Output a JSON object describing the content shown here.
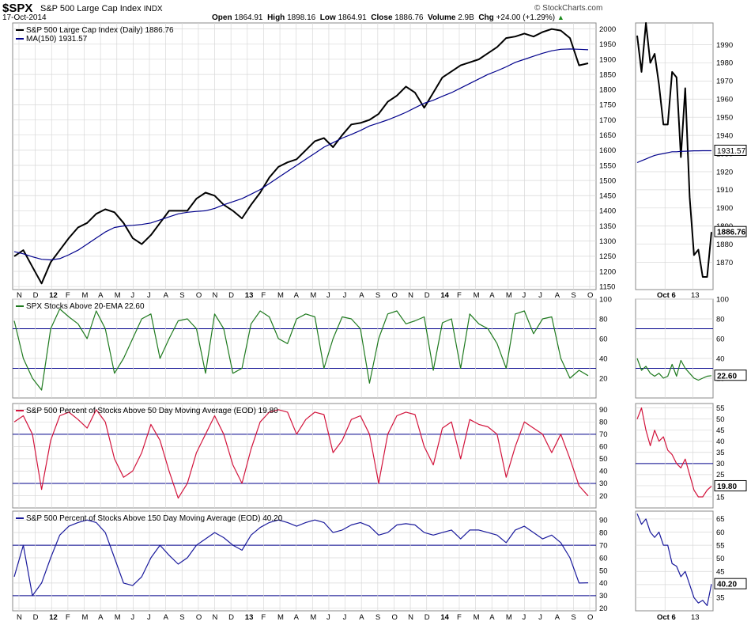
{
  "header": {
    "symbol": "$SPX",
    "name": "S&P 500 Large Cap Index",
    "exchange": "INDX",
    "date": "17-Oct-2014",
    "open_label": "Open",
    "open": "1864.91",
    "high_label": "High",
    "high": "1898.16",
    "low_label": "Low",
    "low": "1864.91",
    "close_label": "Close",
    "close": "1886.76",
    "volume_label": "Volume",
    "volume": "2.9B",
    "chg_label": "Chg",
    "chg": "+24.00 (+1.29%)",
    "brand": "© StockCharts.com"
  },
  "colors": {
    "price": "#000000",
    "ma": "#00008b",
    "ema_pct": "#1f7a1f",
    "pct50": "#d2143c",
    "pct150": "#1a1a9c",
    "grid": "#d8d8d8",
    "ref_line": "#00008b"
  },
  "chart_data": [
    {
      "type": "line",
      "title": "S&P 500 Large Cap Index (Daily) 1886.76",
      "x_ticks": [
        "N",
        "D",
        "12",
        "F",
        "M",
        "A",
        "M",
        "J",
        "J",
        "A",
        "S",
        "O",
        "N",
        "D",
        "13",
        "F",
        "M",
        "A",
        "M",
        "J",
        "J",
        "A",
        "S",
        "O",
        "N",
        "D",
        "14",
        "F",
        "M",
        "A",
        "M",
        "J",
        "J",
        "A",
        "S",
        "O"
      ],
      "ylim": [
        1140,
        2020
      ],
      "y_ticks": [
        1150,
        1200,
        1250,
        1300,
        1350,
        1400,
        1450,
        1500,
        1550,
        1600,
        1650,
        1700,
        1750,
        1800,
        1850,
        1900,
        1950,
        2000
      ],
      "series": [
        {
          "name": "S&P 500 Large Cap Index (Daily) 1886.76",
          "values": [
            1250,
            1270,
            1215,
            1160,
            1230,
            1270,
            1310,
            1345,
            1360,
            1390,
            1405,
            1395,
            1360,
            1310,
            1290,
            1320,
            1360,
            1400,
            1400,
            1400,
            1440,
            1460,
            1450,
            1420,
            1400,
            1375,
            1420,
            1460,
            1510,
            1545,
            1560,
            1570,
            1600,
            1630,
            1640,
            1610,
            1650,
            1685,
            1690,
            1700,
            1720,
            1760,
            1780,
            1810,
            1790,
            1740,
            1790,
            1840,
            1860,
            1880,
            1890,
            1900,
            1920,
            1940,
            1970,
            1975,
            1985,
            1975,
            1990,
            2000,
            1995,
            1970,
            1880,
            1886.76
          ]
        },
        {
          "name": "MA(150) 1931.57",
          "values": [
            1265,
            1258,
            1248,
            1240,
            1238,
            1242,
            1255,
            1270,
            1290,
            1310,
            1330,
            1345,
            1350,
            1352,
            1355,
            1360,
            1370,
            1380,
            1390,
            1395,
            1398,
            1400,
            1408,
            1420,
            1430,
            1440,
            1455,
            1470,
            1490,
            1510,
            1530,
            1550,
            1570,
            1590,
            1610,
            1625,
            1640,
            1652,
            1665,
            1680,
            1690,
            1700,
            1712,
            1725,
            1740,
            1755,
            1765,
            1778,
            1790,
            1805,
            1820,
            1835,
            1850,
            1862,
            1875,
            1890,
            1900,
            1910,
            1920,
            1928,
            1933,
            1934,
            1933,
            1931.57
          ]
        }
      ]
    },
    {
      "type": "line",
      "title": "SPX Stocks Above 20-EMA 22.60",
      "ylim": [
        0,
        100
      ],
      "y_ticks": [
        20,
        40,
        60,
        80,
        100
      ],
      "reference_lines": [
        30,
        70
      ],
      "series": [
        {
          "name": "SPX Stocks Above 20-EMA 22.60",
          "values": [
            78,
            40,
            20,
            8,
            70,
            90,
            82,
            75,
            60,
            88,
            70,
            25,
            40,
            60,
            80,
            85,
            40,
            60,
            78,
            80,
            70,
            25,
            85,
            70,
            25,
            30,
            75,
            88,
            82,
            60,
            55,
            80,
            85,
            82,
            30,
            60,
            82,
            80,
            70,
            15,
            60,
            85,
            88,
            75,
            78,
            82,
            28,
            76,
            80,
            30,
            85,
            75,
            70,
            55,
            30,
            85,
            88,
            65,
            80,
            82,
            40,
            20,
            28,
            22.6
          ]
        }
      ]
    },
    {
      "type": "line",
      "title": "S&P 500 Percent of Stocks Above 50 Day Moving Average (EOD) 19.80",
      "ylim": [
        10,
        95
      ],
      "y_ticks": [
        20,
        30,
        40,
        50,
        60,
        70,
        80,
        90
      ],
      "reference_lines": [
        30,
        70
      ],
      "series": [
        {
          "name": "S&P 500 Percent of Stocks Above 50 Day Moving Average (EOD) 19.80",
          "values": [
            80,
            85,
            70,
            25,
            65,
            85,
            88,
            82,
            75,
            90,
            80,
            50,
            35,
            40,
            55,
            78,
            65,
            40,
            18,
            30,
            55,
            70,
            85,
            70,
            45,
            30,
            58,
            80,
            88,
            90,
            88,
            70,
            82,
            88,
            86,
            55,
            65,
            82,
            85,
            70,
            30,
            70,
            85,
            88,
            86,
            60,
            45,
            75,
            80,
            50,
            82,
            78,
            76,
            70,
            35,
            60,
            80,
            75,
            70,
            55,
            70,
            50,
            28,
            19.8
          ]
        }
      ]
    },
    {
      "type": "line",
      "title": "S&P 500 Percent of Stocks Above 150 Day Moving Average (EOD) 40.20",
      "ylim": [
        18,
        97
      ],
      "y_ticks": [
        20,
        30,
        40,
        50,
        60,
        70,
        80,
        90
      ],
      "reference_lines": [
        30,
        70
      ],
      "series": [
        {
          "name": "S&P 500 Percent of Stocks Above 150 Day Moving Average (EOD) 40.20",
          "values": [
            45,
            70,
            30,
            40,
            60,
            78,
            85,
            88,
            90,
            88,
            80,
            60,
            40,
            38,
            45,
            60,
            70,
            62,
            55,
            60,
            70,
            75,
            80,
            76,
            70,
            66,
            78,
            84,
            88,
            90,
            88,
            85,
            88,
            90,
            88,
            80,
            82,
            86,
            88,
            85,
            78,
            80,
            86,
            87,
            86,
            80,
            78,
            80,
            82,
            75,
            82,
            82,
            80,
            78,
            72,
            82,
            85,
            80,
            75,
            78,
            72,
            60,
            40,
            40.2
          ]
        }
      ]
    },
    {
      "type": "line",
      "title": "",
      "x_ticks": [
        "Oct 6",
        "13"
      ],
      "ylim": [
        1855,
        2002
      ],
      "y_ticks": [
        1870,
        1880,
        1890,
        1900,
        1910,
        1920,
        1930,
        1940,
        1950,
        1960,
        1970,
        1980,
        1990
      ],
      "series": [
        {
          "name": "S&P 500 Large Cap Index (Daily) 1886.76",
          "values": [
            1995,
            1975,
            2002,
            1980,
            1985,
            1968,
            1946,
            1946,
            1975,
            1972,
            1928,
            1966,
            1906,
            1874,
            1877,
            1862,
            1862,
            1886.76
          ]
        },
        {
          "name": "MA(150) 1931.57",
          "values": [
            1925,
            1926,
            1927,
            1928,
            1929,
            1929.5,
            1930,
            1930.5,
            1931,
            1931,
            1931.2,
            1931.3,
            1931.4,
            1931.5,
            1931.5,
            1931.55,
            1931.56,
            1931.57
          ]
        }
      ]
    },
    {
      "type": "line",
      "title": "",
      "ylim": [
        0,
        100
      ],
      "y_ticks": [
        20,
        40,
        60,
        80,
        100
      ],
      "reference_lines": [
        30,
        70
      ],
      "series": [
        {
          "name": "SPX Stocks Above 20-EMA 22.60",
          "values": [
            40,
            28,
            32,
            25,
            22,
            25,
            20,
            22,
            34,
            22,
            38,
            30,
            25,
            20,
            18,
            20,
            22,
            22.6
          ]
        }
      ]
    },
    {
      "type": "line",
      "title": "",
      "ylim": [
        10,
        57
      ],
      "y_ticks": [
        15,
        20,
        25,
        30,
        35,
        40,
        45,
        50,
        55
      ],
      "reference_lines": [
        30
      ],
      "series": [
        {
          "name": "S&P 500 Percent of Stocks Above 50 Day Moving Average (EOD) 19.80",
          "values": [
            50,
            55,
            45,
            38,
            45,
            40,
            42,
            36,
            34,
            30,
            28,
            32,
            25,
            18,
            15,
            15,
            18,
            19.8
          ]
        }
      ]
    },
    {
      "type": "line",
      "title": "",
      "ylim": [
        30,
        68
      ],
      "y_ticks": [
        35,
        40,
        45,
        50,
        55,
        60,
        65
      ],
      "series": [
        {
          "name": "S&P 500 Percent of Stocks Above 150 Day Moving Average (EOD) 40.20",
          "values": [
            67,
            63,
            65,
            60,
            58,
            60,
            55,
            55,
            48,
            47,
            43,
            45,
            40,
            35,
            33,
            34,
            32,
            40.2
          ]
        }
      ]
    }
  ]
}
